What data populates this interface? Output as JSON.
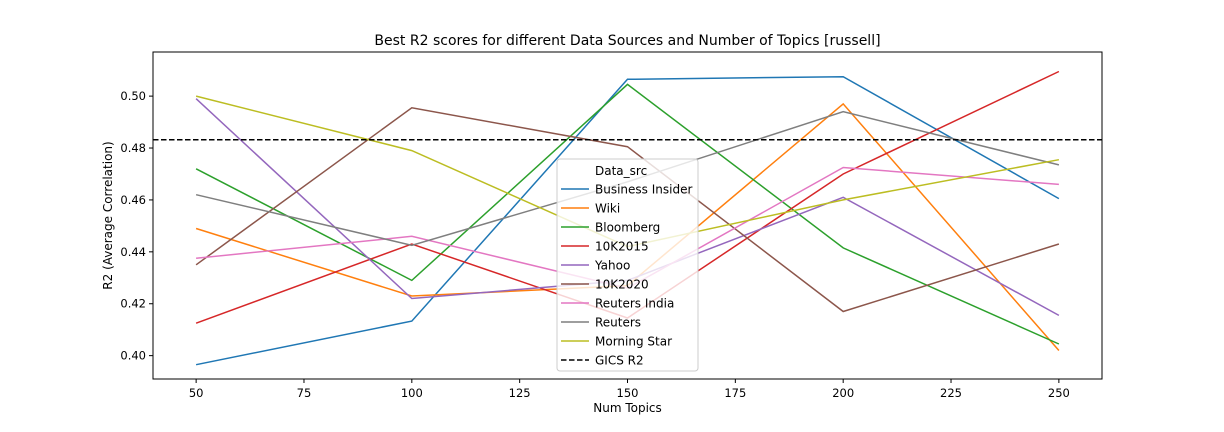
{
  "chart_data": {
    "type": "line",
    "title": "Best R2 scores for different Data Sources and Number of Topics [russell]",
    "xlabel": "Num Topics",
    "ylabel": "R2 (Average Correlation)",
    "x": [
      50,
      100,
      150,
      200,
      250
    ],
    "xticks": [
      50,
      75,
      100,
      125,
      150,
      175,
      200,
      225,
      250
    ],
    "yticks": [
      0.4,
      0.42,
      0.44,
      0.46,
      0.48,
      0.5
    ],
    "xlim": [
      40,
      260
    ],
    "ylim": [
      0.391,
      0.517
    ],
    "grid": false,
    "legend": {
      "title": "Data_src",
      "placement": "center"
    },
    "series": [
      {
        "name": "Business Insider",
        "color": "#1f77b4",
        "values": [
          0.3965,
          0.4133,
          0.5065,
          0.5075,
          0.4605
        ]
      },
      {
        "name": "Wiki",
        "color": "#ff7f0e",
        "values": [
          0.449,
          0.423,
          0.427,
          0.497,
          0.402
        ]
      },
      {
        "name": "Bloomberg",
        "color": "#2ca02c",
        "values": [
          0.472,
          0.429,
          0.5045,
          0.4415,
          0.4045
        ]
      },
      {
        "name": "10K2015",
        "color": "#d62728",
        "values": [
          0.4125,
          0.443,
          0.4145,
          0.47,
          0.5095
        ]
      },
      {
        "name": "Yahoo",
        "color": "#9467bd",
        "values": [
          0.499,
          0.422,
          0.429,
          0.461,
          0.4155
        ]
      },
      {
        "name": "10K2020",
        "color": "#8c564b",
        "values": [
          0.435,
          0.4955,
          0.4805,
          0.417,
          0.443
        ]
      },
      {
        "name": "Reuters India",
        "color": "#e377c2",
        "values": [
          0.4375,
          0.446,
          0.426,
          0.4725,
          0.466
        ]
      },
      {
        "name": "Reuters",
        "color": "#7f7f7f",
        "values": [
          0.462,
          0.4425,
          0.467,
          0.494,
          0.4735
        ]
      },
      {
        "name": "Morning Star",
        "color": "#bcbd22",
        "values": [
          0.5,
          0.479,
          0.442,
          0.46,
          0.4755
        ]
      }
    ],
    "reference_line": {
      "name": "GICS R2",
      "value": 0.4832,
      "color": "#000000",
      "style": "dashed"
    }
  }
}
